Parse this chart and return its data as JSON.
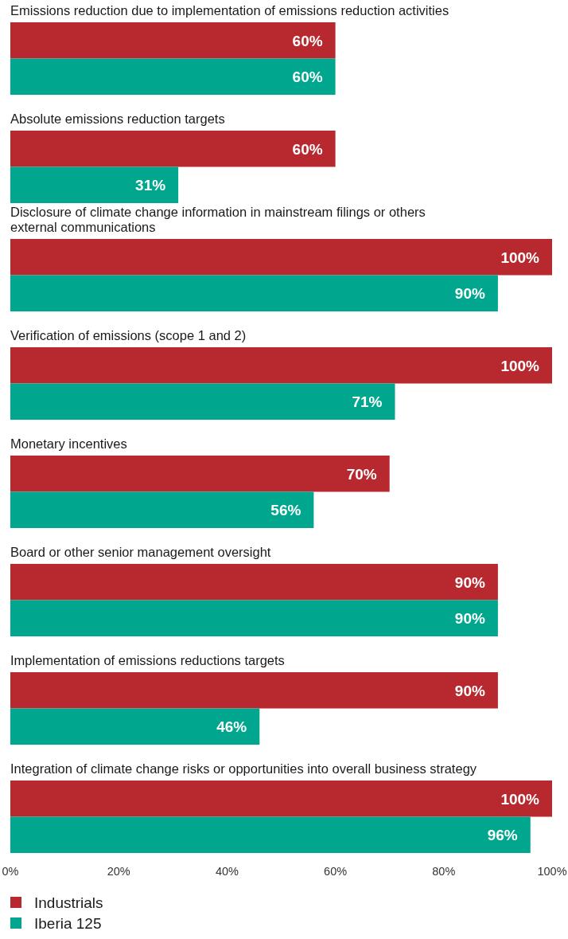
{
  "chart_data": {
    "type": "bar",
    "orientation": "horizontal",
    "categories": [
      "Emissions reduction due to implementation of emissions reduction activities",
      "Absolute emissions reduction targets",
      "Disclosure of climate change information in mainstream filings or others\nexternal communications",
      "Verification of emissions (scope 1 and 2)",
      "Monetary incentives",
      "Board or other senior management oversight",
      "Implementation of emissions reductions targets",
      "Integration of climate change risks or opportunities into overall business strategy"
    ],
    "series": [
      {
        "name": "Industrials",
        "color": "#b8292f",
        "values": [
          60,
          60,
          100,
          100,
          70,
          90,
          90,
          100
        ],
        "value_labels": [
          "60%",
          "60%",
          "100%",
          "100%",
          "70%",
          "90%",
          "90%",
          "100%"
        ]
      },
      {
        "name": "Iberia 125",
        "color": "#00a78e",
        "values": [
          60,
          31,
          90,
          71,
          56,
          90,
          46,
          96
        ],
        "value_labels": [
          "60%",
          "31%",
          "90%",
          "71%",
          "56%",
          "90%",
          "46%",
          "96%"
        ]
      }
    ],
    "xlim": [
      0,
      100
    ],
    "xticks": [
      {
        "value": 0,
        "label": "0%"
      },
      {
        "value": 20,
        "label": "20%"
      },
      {
        "value": 40,
        "label": "40%"
      },
      {
        "value": 60,
        "label": "60%"
      },
      {
        "value": 80,
        "label": "80%"
      },
      {
        "value": 100,
        "label": "100%"
      }
    ],
    "legend": "bottom left"
  }
}
